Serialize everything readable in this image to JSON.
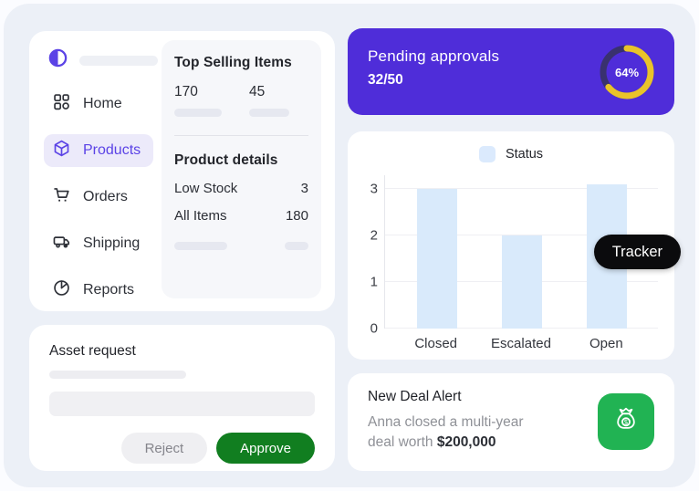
{
  "app": {
    "canvas_bg": "#ecf0f7"
  },
  "sidebar": {
    "logo_icon": "half-circle-logo-icon",
    "active_color": "#5b43e6",
    "active_bg": "#eceafa",
    "items": [
      {
        "label": "Home",
        "icon": "home-grid-icon",
        "active": false
      },
      {
        "label": "Products",
        "icon": "product-box-icon",
        "active": true
      },
      {
        "label": "Orders",
        "icon": "cart-icon",
        "active": false
      },
      {
        "label": "Shipping",
        "icon": "truck-icon",
        "active": false
      },
      {
        "label": "Reports",
        "icon": "pie-chart-icon",
        "active": false
      }
    ]
  },
  "top_selling": {
    "title": "Top Selling Items",
    "values": [
      "170",
      "45"
    ]
  },
  "product_details": {
    "title": "Product details",
    "rows": [
      {
        "label": "Low Stock",
        "value": "3"
      },
      {
        "label": "All Items",
        "value": "180"
      }
    ]
  },
  "asset_request": {
    "title": "Asset request",
    "reject_label": "Reject",
    "approve_label": "Approve",
    "approve_bg": "#117e20"
  },
  "pending": {
    "title": "Pending approvals",
    "count": "32/50",
    "percent": "64%",
    "percent_value": 64,
    "bg_color": "#4f2dd9",
    "ring_color": "#e9c32a",
    "ring_track_color": "#39316f"
  },
  "chart_data": {
    "type": "bar",
    "title": "",
    "legend": [
      "Status"
    ],
    "legend_position": "top",
    "categories": [
      "Closed",
      "Escalated",
      "Open"
    ],
    "values": [
      3,
      2,
      3.1
    ],
    "ylim": [
      0,
      3.3
    ],
    "yticks": [
      0,
      1,
      2,
      3
    ],
    "grid": true,
    "bar_color": "#d9eafb",
    "legend_swatch_color": "#dbeafd",
    "xlabel": "",
    "ylabel": ""
  },
  "tracker": {
    "label": "Tracker",
    "bg_color": "#0b0b0d"
  },
  "deal": {
    "title": "New Deal Alert",
    "line1": "Anna closed a multi-year",
    "line2_prefix": "deal worth ",
    "amount": "$200,000",
    "icon": "money-bag-icon",
    "icon_bg": "#21b353"
  }
}
